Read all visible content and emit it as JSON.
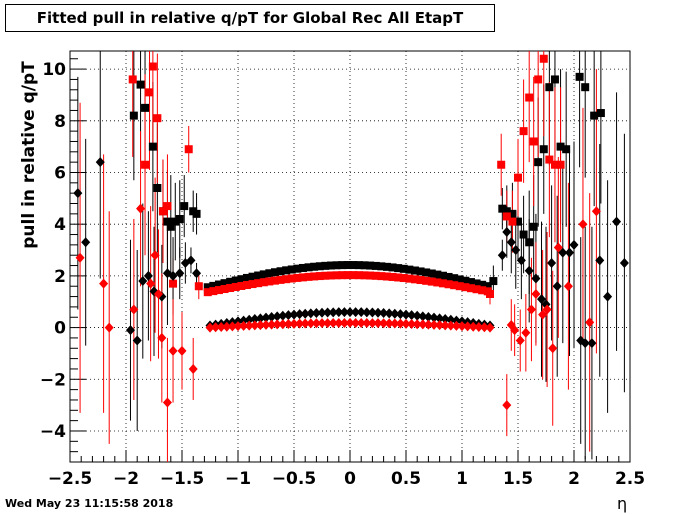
{
  "chart_data": {
    "type": "scatter",
    "title": "Fitted pull in relative q/pT for Global Rec All EtapT",
    "ylabel": "pull in relative q/pT",
    "xlabel": "η",
    "xlim": [
      -2.5,
      2.5
    ],
    "ylim": [
      -5.2,
      10.7
    ],
    "xticks": [
      -2.5,
      -2,
      -1.5,
      -1,
      -0.5,
      0,
      0.5,
      1,
      1.5,
      2,
      2.5
    ],
    "xtick_labels": [
      "−2.5",
      "−2",
      "−1.5",
      "−1",
      "−0.5",
      "0",
      "0.5",
      "1",
      "1.5",
      "2",
      "2.5"
    ],
    "yticks": [
      -4,
      -2,
      0,
      2,
      4,
      6,
      8,
      10
    ],
    "ytick_labels": [
      "−4",
      "−2",
      "0",
      "2",
      "4",
      "6",
      "8",
      "10"
    ],
    "grid": true,
    "series": [
      {
        "color": "#000000",
        "marker": "square",
        "x": [
          -1.93,
          -1.87,
          -1.83,
          -1.76,
          -1.72,
          -1.67,
          -1.63,
          -1.6,
          -1.56,
          -1.52,
          -1.48,
          -1.4,
          -1.37,
          1.28,
          1.36,
          1.4,
          1.45,
          1.5,
          1.55,
          1.6,
          1.64,
          1.68,
          1.73,
          1.78,
          1.83,
          1.88,
          1.93,
          2.05,
          2.1,
          2.18,
          2.24
        ],
        "y": [
          8.2,
          9.4,
          8.5,
          7.0,
          5.4,
          4.5,
          4.1,
          3.9,
          4.1,
          4.2,
          4.7,
          4.5,
          4.4,
          1.8,
          4.6,
          4.5,
          4.4,
          4.1,
          3.6,
          3.3,
          3.9,
          6.4,
          6.9,
          9.3,
          9.6,
          7.0,
          6.9,
          9.7,
          9.3,
          8.2,
          8.3
        ],
        "err": [
          2.5,
          3.0,
          2.5,
          2.5,
          2.5,
          2.0,
          2.0,
          2.0,
          1.5,
          1.5,
          1.2,
          0.8,
          0.8,
          0.6,
          0.8,
          1.0,
          1.2,
          1.5,
          1.5,
          2.0,
          2.0,
          2.5,
          2.5,
          3.0,
          3.0,
          3.0,
          3.0,
          3.5,
          3.5,
          3.5,
          3.5
        ]
      },
      {
        "color": "#ff0000",
        "marker": "square",
        "x": [
          -1.94,
          -1.83,
          -1.79,
          -1.76,
          -1.72,
          -1.67,
          -1.63,
          -1.58,
          -1.44,
          -1.35,
          1.25,
          1.35,
          1.4,
          1.45,
          1.5,
          1.55,
          1.6,
          1.64,
          1.68,
          1.73,
          1.78,
          1.83,
          1.88
        ],
        "y": [
          9.6,
          6.3,
          9.1,
          10.1,
          8.1,
          4.5,
          4.7,
          1.7,
          6.9,
          1.6,
          1.3,
          6.3,
          4.3,
          4.1,
          5.8,
          7.6,
          8.9,
          7.2,
          9.6,
          10.4,
          6.5,
          6.3,
          6.3
        ],
        "err": [
          3.0,
          3.5,
          3.0,
          3.0,
          2.5,
          2.0,
          2.0,
          1.0,
          0.9,
          0.5,
          0.4,
          1.2,
          1.0,
          1.2,
          1.5,
          2.0,
          2.5,
          2.5,
          3.0,
          3.0,
          3.0,
          3.0,
          3.0
        ]
      },
      {
        "color": "#000000",
        "marker": "diamond",
        "x": [
          -2.43,
          -2.36,
          -2.23,
          -1.96,
          -1.9,
          -1.85,
          -1.8,
          -1.75,
          -1.68,
          -1.63,
          -1.58,
          -1.52,
          -1.47,
          -1.42,
          -1.37,
          1.36,
          1.4,
          1.44,
          1.48,
          1.53,
          1.6,
          1.66,
          1.71,
          1.75,
          1.8,
          1.85,
          1.9,
          1.96,
          2.0,
          2.06,
          2.1,
          2.16,
          2.23,
          2.3,
          2.38,
          2.45
        ],
        "y": [
          5.2,
          3.3,
          6.4,
          -0.1,
          -0.5,
          1.8,
          2.0,
          1.4,
          1.2,
          2.1,
          2.0,
          2.1,
          2.5,
          2.6,
          2.1,
          2.8,
          3.7,
          3.3,
          3.0,
          2.6,
          2.2,
          1.9,
          1.1,
          0.9,
          2.5,
          1.6,
          2.9,
          2.9,
          3.2,
          -0.5,
          -0.6,
          -0.6,
          2.6,
          1.2,
          4.1,
          2.5
        ],
        "err": [
          4.5,
          4.0,
          4.5,
          3.5,
          3.5,
          3.0,
          2.5,
          2.5,
          2.0,
          2.0,
          1.5,
          1.0,
          0.8,
          0.5,
          0.4,
          0.6,
          1.0,
          1.2,
          1.5,
          1.5,
          2.0,
          2.5,
          3.0,
          3.0,
          3.0,
          3.5,
          3.5,
          4.0,
          4.0,
          4.0,
          4.5,
          4.5,
          4.5,
          4.5,
          5.0,
          5.0
        ]
      },
      {
        "color": "#ff0000",
        "marker": "diamond",
        "x": [
          -2.41,
          -2.2,
          -2.15,
          -1.93,
          -1.87,
          -1.78,
          -1.74,
          -1.71,
          -1.68,
          -1.63,
          -1.58,
          -1.5,
          -1.4,
          1.4,
          1.44,
          1.47,
          1.52,
          1.57,
          1.62,
          1.66,
          1.72,
          1.76,
          1.81,
          1.86,
          1.95,
          2.08,
          2.14,
          2.2
        ],
        "y": [
          2.7,
          1.7,
          0.0,
          0.7,
          4.6,
          1.7,
          2.8,
          1.3,
          -0.4,
          -2.9,
          -0.9,
          -0.9,
          -1.6,
          -3.0,
          0.1,
          -0.1,
          -0.5,
          -0.2,
          0.7,
          1.3,
          0.5,
          0.7,
          -0.8,
          3.1,
          1.6,
          4.0,
          0.2,
          4.5
        ],
        "err": [
          6.0,
          5.0,
          4.5,
          3.5,
          3.0,
          3.0,
          3.0,
          2.5,
          2.5,
          2.5,
          2.0,
          1.5,
          1.2,
          1.2,
          1.0,
          1.0,
          1.2,
          1.5,
          2.0,
          2.0,
          2.5,
          3.0,
          3.0,
          3.5,
          4.0,
          4.5,
          5.0,
          5.5
        ]
      }
    ],
    "bands": [
      {
        "color": "#000000",
        "marker": "square",
        "eta_range": [
          -1.27,
          1.27
        ],
        "center": 2.42,
        "edge": 1.56
      },
      {
        "color": "#ff0000",
        "marker": "square",
        "eta_range": [
          -1.27,
          1.27
        ],
        "center": 2.03,
        "edge": 1.37
      },
      {
        "color": "#000000",
        "marker": "diamond",
        "eta_range": [
          -1.25,
          1.25
        ],
        "center": 0.6,
        "edge": 0.08
      },
      {
        "color": "#ff0000",
        "marker": "diamond",
        "eta_range": [
          -1.25,
          1.25
        ],
        "center": 0.18,
        "edge": 0.0
      }
    ]
  },
  "footer": {
    "timestamp": "Wed May 23 11:15:58 2018"
  }
}
